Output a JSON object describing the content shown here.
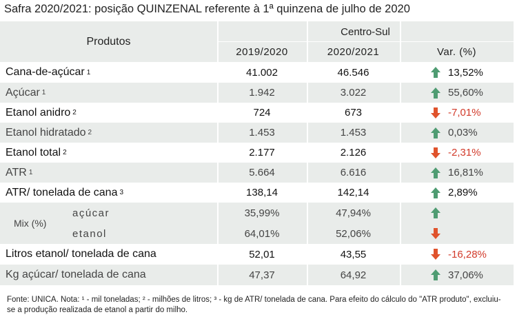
{
  "title": "Safra 2020/2021: posição QUINZENAL referente à 1ª quinzena de julho de 2020",
  "table": {
    "header": {
      "products": "Produtos",
      "group": "Centro-Sul",
      "columns": [
        "2019/2020",
        "2020/2021",
        "Var. (%)"
      ]
    },
    "rows": [
      {
        "label": "Cana-de-açúcar",
        "sup": "1",
        "strong": true,
        "values": [
          "41.002",
          "46.546",
          "13,52%"
        ],
        "trend": "up"
      },
      {
        "label": "Açúcar",
        "sup": "1",
        "strong": false,
        "values": [
          "1.942",
          "3.022",
          "55,60%"
        ],
        "trend": "up"
      },
      {
        "label": "Etanol anidro",
        "sup": "2",
        "strong": true,
        "values": [
          "724",
          "673",
          "-7,01%"
        ],
        "trend": "down"
      },
      {
        "label": "Etanol hidratado",
        "sup": "2",
        "strong": false,
        "values": [
          "1.453",
          "1.453",
          "0,03%"
        ],
        "trend": "up"
      },
      {
        "label": "Etanol total",
        "sup": "2",
        "strong": true,
        "values": [
          "2.177",
          "2.126",
          "-2,31%"
        ],
        "trend": "down"
      },
      {
        "label": "ATR",
        "sup": "1",
        "strong": false,
        "values": [
          "5.664",
          "6.616",
          "16,81%"
        ],
        "trend": "up"
      },
      {
        "label": "ATR/ tonelada de cana",
        "sup": "3",
        "strong": true,
        "values": [
          "138,14",
          "142,14",
          "2,89%"
        ],
        "trend": "up"
      },
      {
        "label": "Mix (%)",
        "strong": false,
        "subrows": [
          {
            "label": "açúcar",
            "values": [
              "35,99%",
              "47,94%"
            ],
            "trend": "up"
          },
          {
            "label": "etanol",
            "values": [
              "64,01%",
              "52,06%"
            ],
            "trend": "down"
          }
        ]
      },
      {
        "label": "Litros etanol/ tonelada de cana",
        "strong": true,
        "values": [
          "52,01",
          "43,55",
          "-16,28%"
        ],
        "trend": "down"
      },
      {
        "label": "Kg açúcar/ tonelada de cana",
        "strong": false,
        "values": [
          "47,37",
          "64,92",
          "37,06%"
        ],
        "trend": "up"
      }
    ]
  },
  "footnote": "Fonte: UNICA. Nota: ¹ - mil toneladas; ² - milhões de litros; ³ - kg de ATR/ tonelada de cana. Para efeito do cálculo do \"ATR produto\", excluiu-se a produção realizada de etanol a partir do milho."
}
